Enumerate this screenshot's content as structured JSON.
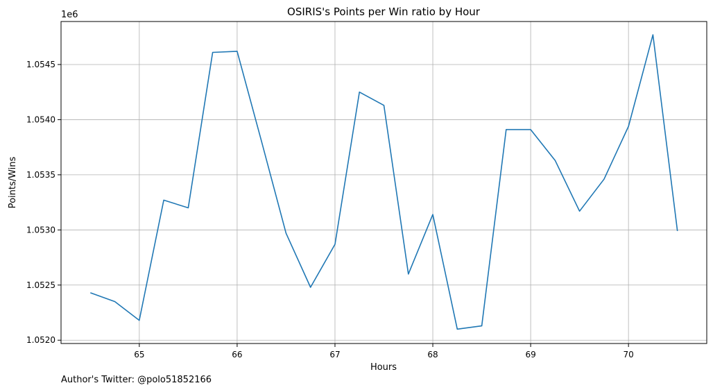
{
  "chart_data": {
    "type": "line",
    "title": "OSIRIS's Points per Win ratio by Hour",
    "xlabel": "Hours",
    "ylabel": "Points/Wins",
    "offset_label": "1e6",
    "xlim": [
      64.2,
      70.8
    ],
    "ylim": [
      1.05197,
      1.05489
    ],
    "x_ticks": [
      65,
      66,
      67,
      68,
      69,
      70
    ],
    "x_tick_labels": [
      "65",
      "66",
      "67",
      "68",
      "69",
      "70"
    ],
    "y_ticks": [
      1.052,
      1.0525,
      1.053,
      1.0535,
      1.054,
      1.0545
    ],
    "y_tick_labels": [
      "1.0520",
      "1.0525",
      "1.0530",
      "1.0535",
      "1.0540",
      "1.0545"
    ],
    "grid": true,
    "series": [
      {
        "color": "#1f77b4",
        "x": [
          64.5,
          64.75,
          65.0,
          65.25,
          65.5,
          65.75,
          66.0,
          66.25,
          66.5,
          66.75,
          67.0,
          67.25,
          67.5,
          67.75,
          68.0,
          68.25,
          68.5,
          68.75,
          69.0,
          69.25,
          69.5,
          69.75,
          70.0,
          70.25,
          70.5
        ],
        "y": [
          1.05243,
          1.05235,
          1.05218,
          1.05327,
          1.0532,
          1.05461,
          1.05462,
          1.0538,
          1.05297,
          1.05248,
          1.05287,
          1.05425,
          1.05413,
          1.0526,
          1.05314,
          1.0521,
          1.05213,
          1.05391,
          1.05391,
          1.05363,
          1.05317,
          1.05346,
          1.05394,
          1.05477,
          1.05299
        ]
      }
    ]
  },
  "footer": {
    "credit": "Author's Twitter: @polo51852166"
  }
}
